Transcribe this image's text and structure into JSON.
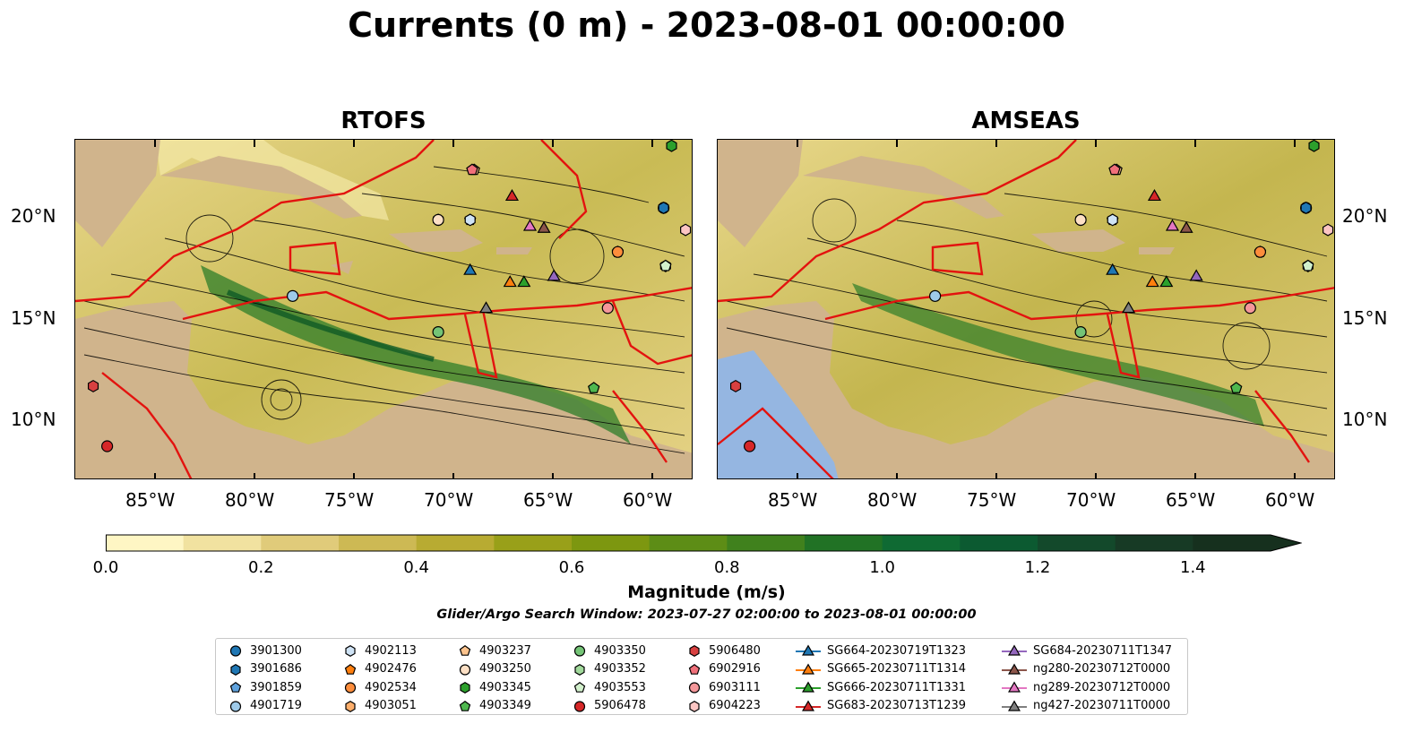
{
  "title": "Currents (0 m) - 2023-08-01 00:00:00",
  "panels": [
    {
      "title": "RTOFS"
    },
    {
      "title": "AMSEAS"
    }
  ],
  "lon_labels": [
    "85°W",
    "80°W",
    "75°W",
    "70°W",
    "65°W",
    "60°W"
  ],
  "lat_labels": [
    "20°N",
    "15°N",
    "10°N"
  ],
  "colorbar": {
    "label": "Magnitude (m/s)",
    "tick_labels": [
      "0.0",
      "0.2",
      "0.4",
      "0.6",
      "0.8",
      "1.0",
      "1.2",
      "1.4"
    ],
    "min": 0.0,
    "max": 1.5,
    "colors": [
      "#fef6c4",
      "#f1e2a0",
      "#e0cb7a",
      "#cdb954",
      "#b8ab32",
      "#99a019",
      "#7d9710",
      "#5d8d16",
      "#40811d",
      "#217225",
      "#0f6a33",
      "#0c5a31",
      "#13492b",
      "#173a25",
      "#16301e"
    ]
  },
  "search_window": "Glider/Argo Search Window: 2023-07-27 02:00:00 to 2023-08-01 00:00:00",
  "legend": [
    {
      "label": "3901300",
      "marker": "circle",
      "color": "#1f77b4"
    },
    {
      "label": "3901686",
      "marker": "hexagon",
      "color": "#1f77b4"
    },
    {
      "label": "3901859",
      "marker": "pentagon",
      "color": "#5fa2dd"
    },
    {
      "label": "4901719",
      "marker": "circle",
      "color": "#9ecae9"
    },
    {
      "label": "4902113",
      "marker": "hexagon",
      "color": "#cfe3f5"
    },
    {
      "label": "4902476",
      "marker": "pentagon",
      "color": "#ff7f0e"
    },
    {
      "label": "4902534",
      "marker": "circle",
      "color": "#fd8d3c"
    },
    {
      "label": "4903051",
      "marker": "hexagon",
      "color": "#fdae6b"
    },
    {
      "label": "4903237",
      "marker": "pentagon",
      "color": "#fdc48e"
    },
    {
      "label": "4903250",
      "marker": "circle",
      "color": "#fde0c5"
    },
    {
      "label": "4903345",
      "marker": "hexagon",
      "color": "#2ca02c"
    },
    {
      "label": "4903349",
      "marker": "pentagon",
      "color": "#4fb84f"
    },
    {
      "label": "4903350",
      "marker": "circle",
      "color": "#74c476"
    },
    {
      "label": "4903352",
      "marker": "hexagon",
      "color": "#a1d99b"
    },
    {
      "label": "4903553",
      "marker": "pentagon",
      "color": "#d2f0cc"
    },
    {
      "label": "5906478",
      "marker": "circle",
      "color": "#d62728"
    },
    {
      "label": "5906480",
      "marker": "hexagon",
      "color": "#d84040"
    },
    {
      "label": "6902916",
      "marker": "pentagon",
      "color": "#f0707a"
    },
    {
      "label": "6903111",
      "marker": "circle",
      "color": "#f4979a"
    },
    {
      "label": "6904223",
      "marker": "hexagon",
      "color": "#fcc5c3"
    },
    {
      "label": "SG664-20230719T1323",
      "marker": "triangle-line",
      "color": "#1f77b4"
    },
    {
      "label": "SG665-20230711T1314",
      "marker": "triangle-line",
      "color": "#ff7f0e"
    },
    {
      "label": "SG666-20230711T1331",
      "marker": "triangle-line",
      "color": "#2ca02c"
    },
    {
      "label": "SG683-20230713T1239",
      "marker": "triangle-line",
      "color": "#d62728"
    },
    {
      "label": "SG684-20230711T1347",
      "marker": "triangle-line",
      "color": "#9467bd"
    },
    {
      "label": "ng280-20230712T0000",
      "marker": "triangle-line",
      "color": "#8c564b"
    },
    {
      "label": "ng289-20230712T0000",
      "marker": "triangle-line",
      "color": "#e377c2"
    },
    {
      "label": "ng427-20230711T0000",
      "marker": "triangle-line",
      "color": "#7f7f7f"
    }
  ],
  "markers": [
    {
      "id": "3901300",
      "lon": -59.5,
      "lat": 20.6
    },
    {
      "id": "3901686",
      "lon": -59.5,
      "lat": 20.6
    },
    {
      "id": "3901859",
      "lon": -69.2,
      "lat": 20.0
    },
    {
      "id": "4901719",
      "lon": -78.1,
      "lat": 16.2
    },
    {
      "id": "4902113",
      "lon": -69.2,
      "lat": 20.0
    },
    {
      "id": "4902476",
      "lon": -61.8,
      "lat": 18.4
    },
    {
      "id": "4902534",
      "lon": -61.8,
      "lat": 18.4
    },
    {
      "id": "4903051",
      "lon": -70.8,
      "lat": 20.0
    },
    {
      "id": "4903237",
      "lon": -69.0,
      "lat": 22.5
    },
    {
      "id": "4903250",
      "lon": -70.8,
      "lat": 20.0
    },
    {
      "id": "4903345",
      "lon": -59.1,
      "lat": 23.7
    },
    {
      "id": "4903349",
      "lon": -63.0,
      "lat": 11.6
    },
    {
      "id": "4903350",
      "lon": -70.8,
      "lat": 14.4
    },
    {
      "id": "4903352",
      "lon": -59.4,
      "lat": 17.7
    },
    {
      "id": "4903553",
      "lon": -59.4,
      "lat": 17.7
    },
    {
      "id": "5906478",
      "lon": -87.4,
      "lat": 8.7
    },
    {
      "id": "5906480",
      "lon": -88.1,
      "lat": 11.7
    },
    {
      "id": "6902916",
      "lon": -69.1,
      "lat": 22.5
    },
    {
      "id": "6903111",
      "lon": -62.3,
      "lat": 15.6
    },
    {
      "id": "6904223",
      "lon": -58.4,
      "lat": 19.5
    },
    {
      "id": "SG664-20230719T1323",
      "lon": -69.2,
      "lat": 17.5
    },
    {
      "id": "SG665-20230711T1314",
      "lon": -67.2,
      "lat": 16.9
    },
    {
      "id": "SG666-20230711T1331",
      "lon": -66.5,
      "lat": 16.9
    },
    {
      "id": "SG683-20230713T1239",
      "lon": -67.1,
      "lat": 21.2
    },
    {
      "id": "SG684-20230711T1347",
      "lon": -65.0,
      "lat": 17.2
    },
    {
      "id": "ng280-20230712T0000",
      "lon": -65.5,
      "lat": 19.6
    },
    {
      "id": "ng289-20230712T0000",
      "lon": -66.2,
      "lat": 19.7
    },
    {
      "id": "ng427-20230711T0000",
      "lon": -68.4,
      "lat": 15.6
    }
  ]
}
